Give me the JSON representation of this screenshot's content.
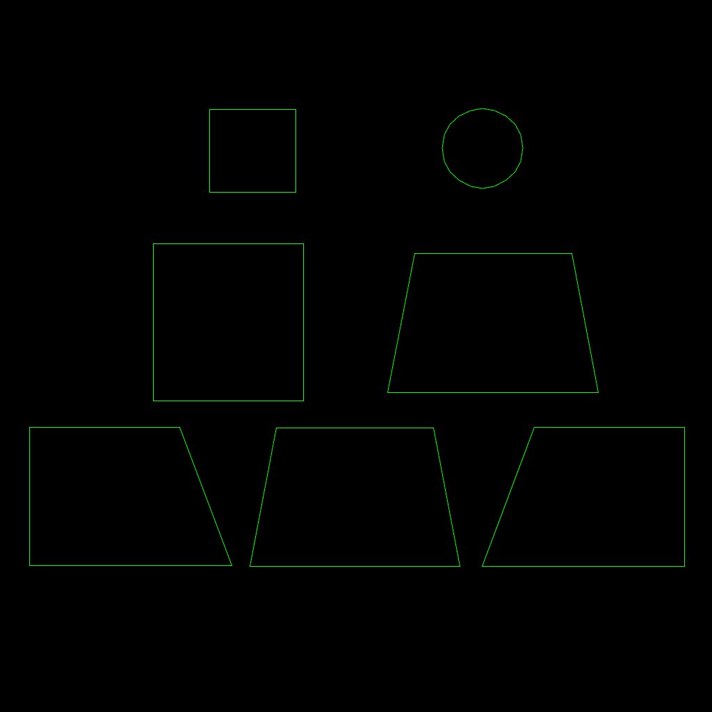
{
  "diagram": {
    "background_color": "#000000",
    "stroke_color": "#00ff00",
    "shapes": [
      {
        "name": "small-square-outline",
        "kind": "square"
      },
      {
        "name": "circle-outline",
        "kind": "circle"
      },
      {
        "name": "large-square-outline",
        "kind": "square"
      },
      {
        "name": "trapezoid-outline",
        "kind": "trapezoid"
      },
      {
        "name": "right-trapezoid-left-outline",
        "kind": "right-trapezoid"
      },
      {
        "name": "trapezoid-bottom-middle-outline",
        "kind": "trapezoid"
      },
      {
        "name": "right-trapezoid-right-outline",
        "kind": "right-trapezoid"
      }
    ]
  }
}
